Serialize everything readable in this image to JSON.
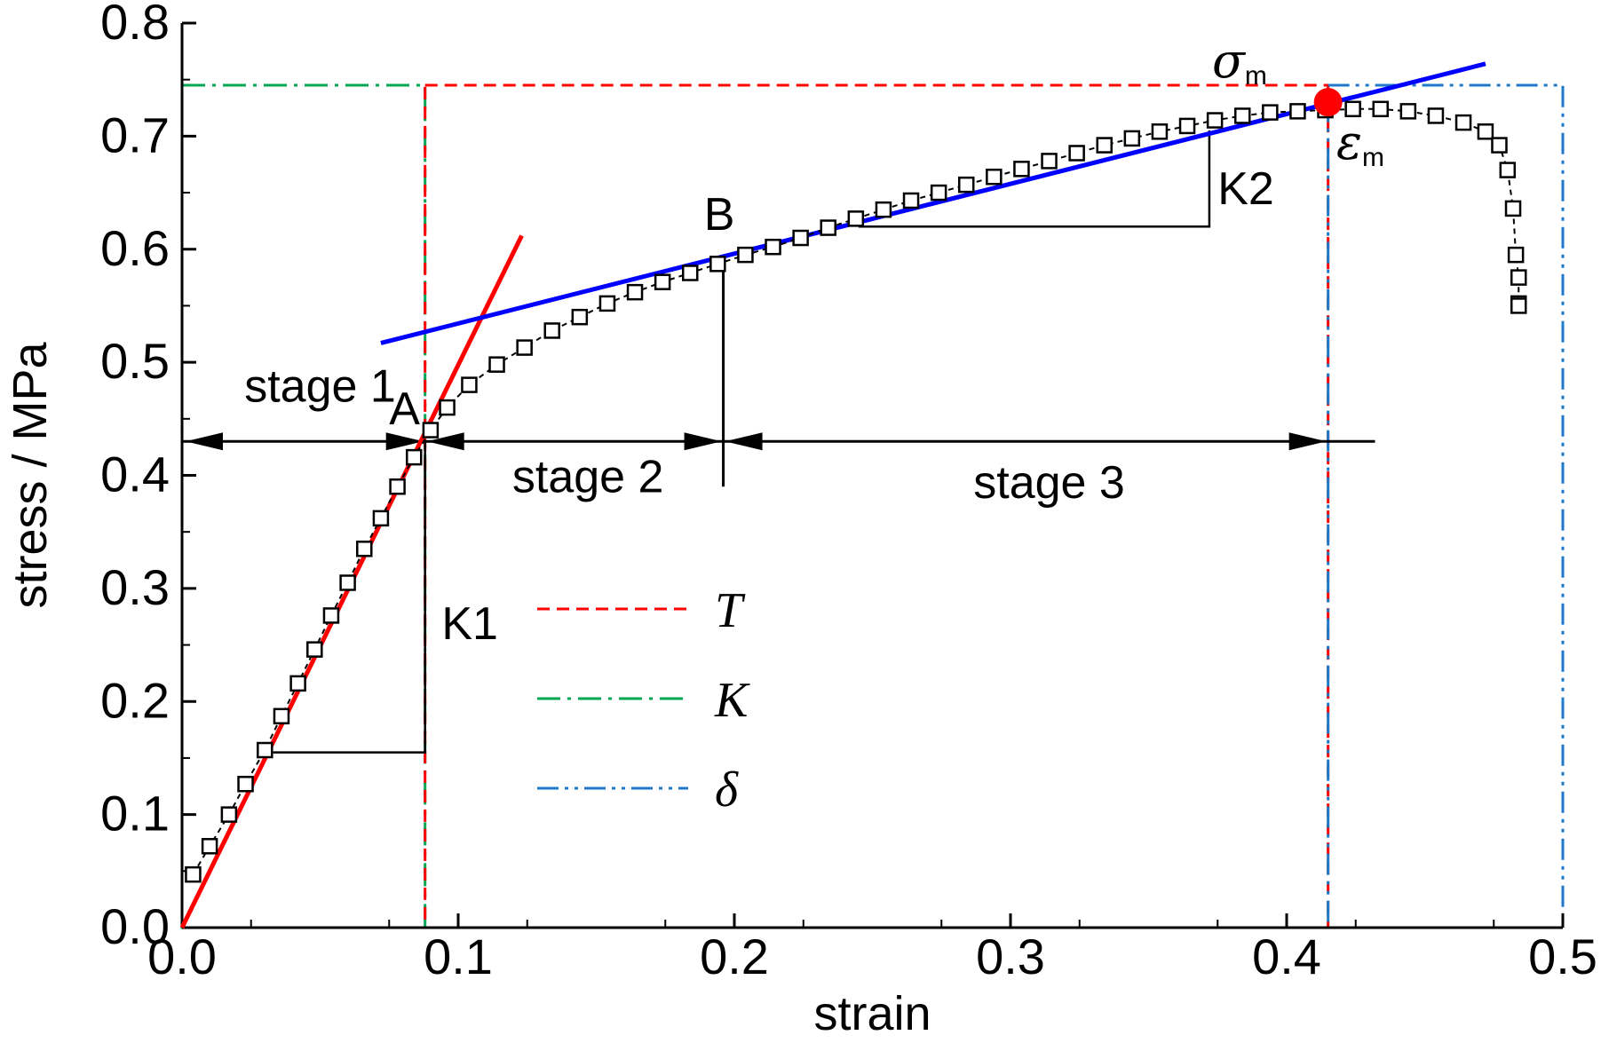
{
  "chart_data": {
    "type": "scatter",
    "xlabel": "strain",
    "ylabel": "stress / MPa",
    "xlim": [
      0.0,
      0.5
    ],
    "ylim": [
      0.0,
      0.8
    ],
    "x_ticks": [
      "0.0",
      "0.1",
      "0.2",
      "0.3",
      "0.4",
      "0.5"
    ],
    "y_ticks": [
      "0.0",
      "0.1",
      "0.2",
      "0.3",
      "0.4",
      "0.5",
      "0.6",
      "0.7",
      "0.8"
    ],
    "series": [
      {
        "marker": "square",
        "color": "#000000",
        "x": [
          0.004,
          0.01,
          0.017,
          0.023,
          0.03,
          0.036,
          0.042,
          0.048,
          0.054,
          0.06,
          0.066,
          0.072,
          0.078,
          0.084,
          0.09,
          0.096,
          0.104,
          0.114,
          0.124,
          0.134,
          0.144,
          0.154,
          0.164,
          0.174,
          0.184,
          0.194,
          0.204,
          0.214,
          0.224,
          0.234,
          0.244,
          0.254,
          0.264,
          0.274,
          0.284,
          0.294,
          0.304,
          0.314,
          0.324,
          0.334,
          0.344,
          0.354,
          0.364,
          0.374,
          0.384,
          0.394,
          0.404,
          0.414,
          0.424,
          0.434,
          0.444,
          0.454,
          0.464,
          0.472,
          0.477,
          0.48,
          0.482,
          0.483,
          0.484,
          0.484,
          0.484
        ],
        "y": [
          0.047,
          0.072,
          0.1,
          0.127,
          0.157,
          0.187,
          0.216,
          0.246,
          0.276,
          0.305,
          0.335,
          0.362,
          0.39,
          0.416,
          0.44,
          0.46,
          0.48,
          0.498,
          0.513,
          0.528,
          0.54,
          0.552,
          0.562,
          0.571,
          0.579,
          0.587,
          0.595,
          0.602,
          0.61,
          0.619,
          0.627,
          0.635,
          0.643,
          0.65,
          0.657,
          0.664,
          0.671,
          0.678,
          0.685,
          0.692,
          0.698,
          0.704,
          0.709,
          0.714,
          0.718,
          0.721,
          0.722,
          0.723,
          0.724,
          0.724,
          0.722,
          0.718,
          0.712,
          0.704,
          0.692,
          0.67,
          0.636,
          0.595,
          0.575,
          0.552,
          0.55
        ]
      }
    ],
    "fit_lines": [
      {
        "label": "K1",
        "color": "#ff0000",
        "x": [
          0.0,
          0.123
        ],
        "y": [
          0.0,
          0.612
        ]
      },
      {
        "label": "K2",
        "color": "#0000ff",
        "x": [
          0.072,
          0.472
        ],
        "y": [
          0.517,
          0.764
        ]
      }
    ],
    "legend": {
      "placement": "center-left",
      "items": [
        {
          "label": "T",
          "color": "#ff0000",
          "dash": "dashed"
        },
        {
          "label": "K",
          "color": "#00a651",
          "dash": "dash-dot"
        },
        {
          "label": "δ",
          "color": "#1f78c8",
          "dash": "dash-dot-dot"
        }
      ]
    },
    "boundary_boxes": [
      {
        "key": "K",
        "x": [
          0.0,
          0.088
        ],
        "y": [
          0.0,
          0.745
        ],
        "color": "#00a651"
      },
      {
        "key": "T",
        "x": [
          0.088,
          0.415
        ],
        "y": [
          0.0,
          0.745
        ],
        "color": "#ff0000"
      },
      {
        "key": "delta",
        "x": [
          0.415,
          0.5
        ],
        "y": [
          0.0,
          0.745
        ],
        "color": "#1f78c8"
      }
    ],
    "stages_y": 0.43,
    "stages": [
      {
        "label": "stage 1",
        "x": [
          0.0,
          0.088
        ]
      },
      {
        "label": "stage 2",
        "x": [
          0.088,
          0.196
        ]
      },
      {
        "label": "stage 3",
        "x": [
          0.196,
          0.415
        ]
      }
    ],
    "point_labels": [
      {
        "label": "A",
        "x": 0.088,
        "y": 0.43
      },
      {
        "label": "B",
        "x": 0.196,
        "y": 0.59
      }
    ],
    "peak": {
      "x": 0.415,
      "y": 0.73,
      "color": "#ff0000",
      "label_stress": "σ",
      "label_strain": "ε",
      "subscript": "m"
    },
    "grid": false
  }
}
